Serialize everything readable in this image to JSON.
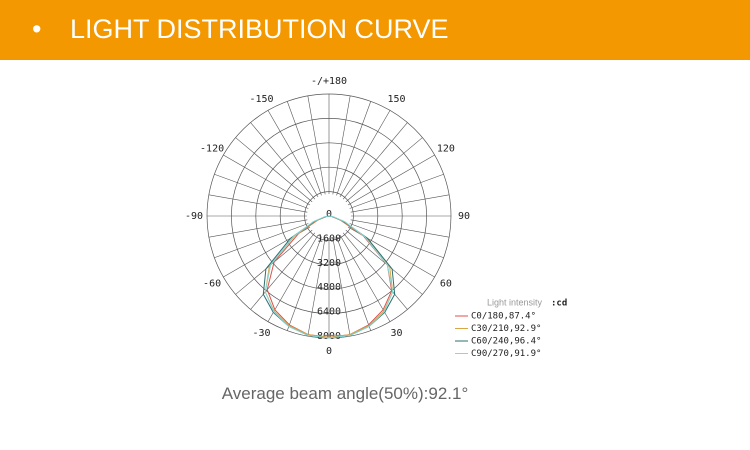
{
  "header": {
    "bullet": "•",
    "title": "LIGHT DISTRIBUTION CURVE"
  },
  "chart_data": {
    "type": "polar",
    "x": [
      -90,
      -80,
      -70,
      -60,
      -50,
      -40,
      -30,
      -20,
      -10,
      0,
      10,
      20,
      30,
      40,
      50,
      60,
      70,
      80,
      90
    ],
    "rlim": [
      0,
      8000
    ],
    "rticks": [
      0,
      1600,
      3200,
      4800,
      6400,
      8000
    ],
    "angle_ticks": [
      {
        "value": 180,
        "label": "-/+180"
      },
      150,
      120,
      90,
      60,
      30,
      0,
      -30,
      -60,
      -90,
      -120,
      -150
    ],
    "legend_title": "Light intensity",
    "legend_unit": ":cd",
    "series": [
      {
        "name": "C0/180,87.4°",
        "color": "#e0504a",
        "values": [
          0,
          150,
          800,
          2300,
          4700,
          6300,
          7100,
          7600,
          7900,
          7950,
          7900,
          7600,
          7100,
          6400,
          5000,
          2600,
          800,
          200,
          0
        ]
      },
      {
        "name": "C30/210,92.9°",
        "color": "#d9a646",
        "values": [
          0,
          200,
          900,
          2600,
          5100,
          6500,
          7200,
          7650,
          7900,
          7950,
          7900,
          7650,
          7200,
          6500,
          5200,
          2800,
          900,
          200,
          0
        ]
      },
      {
        "name": "C60/240,96.4°",
        "color": "#2e6f73",
        "values": [
          0,
          250,
          1000,
          2900,
          5400,
          6700,
          7300,
          7700,
          7950,
          8000,
          7950,
          7700,
          7300,
          6700,
          5400,
          2900,
          1000,
          250,
          0
        ]
      },
      {
        "name": "C90/270,91.9°",
        "color": "#86d9d6",
        "values": [
          0,
          300,
          1100,
          2700,
          5000,
          6500,
          7250,
          7700,
          7950,
          8000,
          7950,
          7700,
          7250,
          6500,
          5000,
          2700,
          1100,
          300,
          0
        ]
      }
    ]
  },
  "footnote": "Average beam angle(50%):92.1°"
}
